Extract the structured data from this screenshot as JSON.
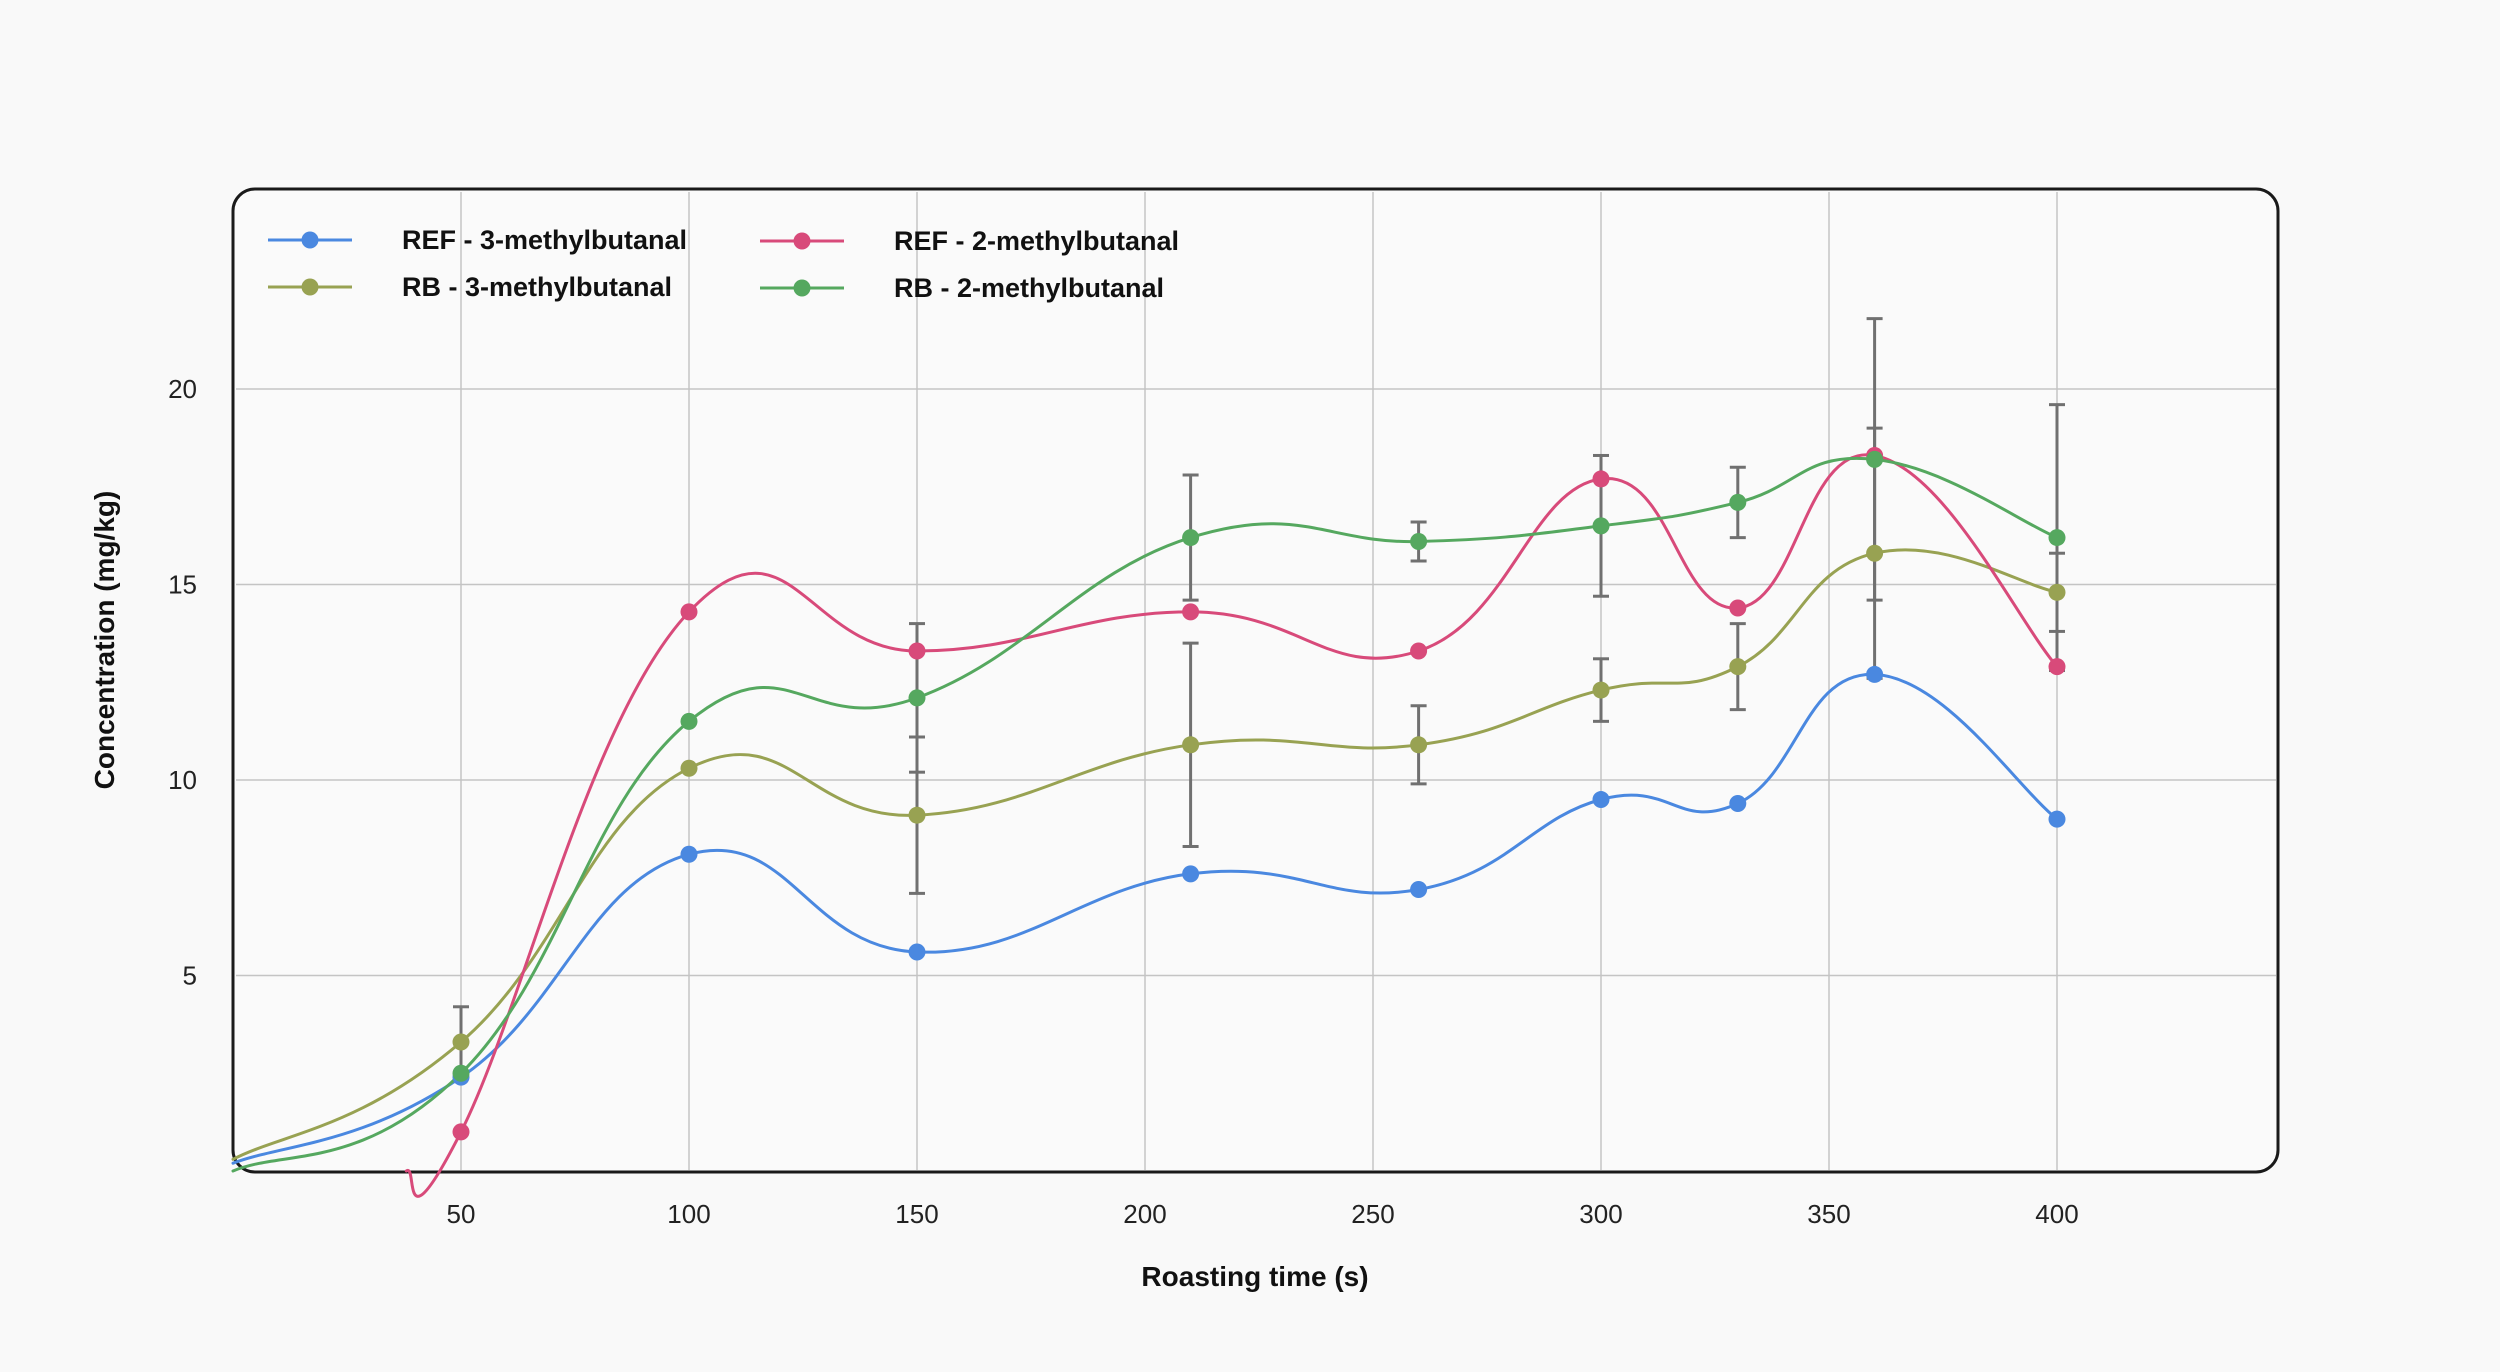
{
  "chart_data": {
    "type": "line",
    "title": "",
    "xlabel": "Roasting time (s)",
    "ylabel": "Concentration (mg/kg)",
    "xlim": [
      0,
      450
    ],
    "ylim": [
      0,
      24
    ],
    "x_ticks": [
      50,
      100,
      150,
      200,
      250,
      300,
      350,
      400
    ],
    "y_ticks": [
      5,
      10,
      15,
      20
    ],
    "grid": true,
    "legend_position": "top-left",
    "series": [
      {
        "name": "REF - 3-methylbutanal",
        "color": "#4a88e0",
        "start": [
          0,
          0.2
        ],
        "x": [
          50,
          100,
          150,
          210,
          260,
          300,
          330,
          360,
          400
        ],
        "y": [
          2.4,
          8.1,
          5.6,
          7.6,
          7.2,
          9.5,
          9.4,
          12.7,
          9.0
        ],
        "error": [
          null,
          null,
          null,
          null,
          null,
          null,
          null,
          null,
          null
        ]
      },
      {
        "name": "RB - 3-methylbutanal",
        "color": "#98a252",
        "start": [
          0,
          0.3
        ],
        "x": [
          50,
          100,
          150,
          210,
          260,
          300,
          330,
          360,
          400
        ],
        "y": [
          3.3,
          10.3,
          9.1,
          10.9,
          10.9,
          12.3,
          12.9,
          15.8,
          14.8
        ],
        "error": [
          0.9,
          null,
          2.0,
          2.6,
          1.0,
          0.8,
          1.1,
          3.2,
          1.0
        ]
      },
      {
        "name": "REF - 2-methylbutanal",
        "color": "#d84a7a",
        "start": [
          38,
          0
        ],
        "x": [
          50,
          100,
          150,
          210,
          260,
          300,
          330,
          360,
          400
        ],
        "y": [
          1.0,
          14.3,
          13.3,
          14.3,
          13.3,
          17.7,
          14.4,
          18.3,
          12.9
        ],
        "error": [
          null,
          null,
          null,
          null,
          null,
          null,
          null,
          null,
          null
        ]
      },
      {
        "name": "RB - 2-methylbutanal",
        "color": "#55a85f",
        "start": [
          0,
          0.0
        ],
        "x": [
          50,
          100,
          150,
          210,
          260,
          300,
          330,
          360,
          400
        ],
        "y": [
          2.5,
          11.5,
          12.1,
          16.2,
          16.1,
          16.5,
          17.1,
          18.2,
          16.2
        ],
        "error": [
          null,
          null,
          1.9,
          1.6,
          0.5,
          1.8,
          0.9,
          3.6,
          3.4
        ]
      }
    ]
  }
}
